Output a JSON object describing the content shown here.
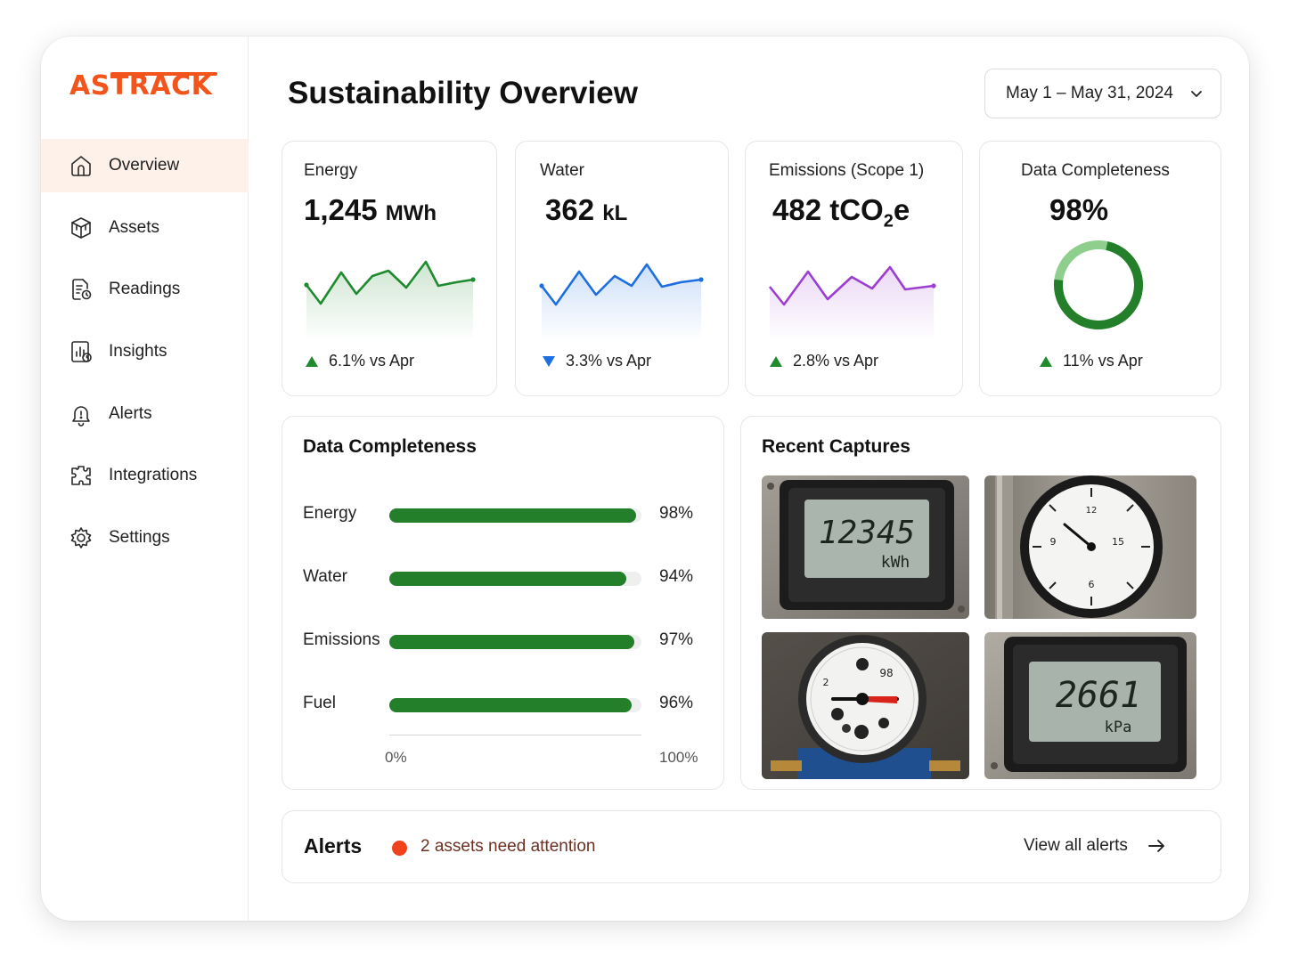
{
  "app": {
    "logo": "ASTRACK",
    "brand_color": "#f2541b"
  },
  "sidebar": {
    "items": [
      {
        "label": "Overview",
        "icon": "home-icon",
        "active": true
      },
      {
        "label": "Assets",
        "icon": "cube-icon",
        "active": false
      },
      {
        "label": "Readings",
        "icon": "document-icon",
        "active": false
      },
      {
        "label": "Insights",
        "icon": "chart-icon",
        "active": false
      },
      {
        "label": "Alerts",
        "icon": "bell-icon",
        "active": false
      },
      {
        "label": "Integrations",
        "icon": "puzzle-icon",
        "active": false
      },
      {
        "label": "Settings",
        "icon": "gear-icon",
        "active": false
      }
    ]
  },
  "header": {
    "title": "Sustainability Overview",
    "date_range": "May 1 – May 31, 2024"
  },
  "kpis": {
    "energy": {
      "label": "Energy",
      "value": "1,245",
      "unit": "MWh",
      "delta": "6.1% vs Apr",
      "direction": "up",
      "color": "#1f8a2e"
    },
    "water": {
      "label": "Water",
      "value": "362",
      "unit": "kL",
      "delta": "3.3% vs Apr",
      "direction": "down",
      "color": "#1d6fe0"
    },
    "emissions": {
      "label": "Emissions (Scope 1)",
      "value": "482",
      "unit_pre": "tCO",
      "unit_sub": "2",
      "unit_post": "e",
      "delta": "2.8% vs Apr",
      "direction": "up",
      "color": "#9b3ed1"
    },
    "completeness": {
      "label": "Data Completeness",
      "value": "98%",
      "delta": "11% vs Apr",
      "direction": "up",
      "fraction": 0.98
    }
  },
  "completeness": {
    "title": "Data Completeness",
    "rows": [
      {
        "label": "Energy",
        "value": "98%",
        "fraction": 0.98
      },
      {
        "label": "Water",
        "value": "94%",
        "fraction": 0.94
      },
      {
        "label": "Emissions",
        "value": "97%",
        "fraction": 0.97
      },
      {
        "label": "Fuel",
        "value": "96%",
        "fraction": 0.96
      }
    ],
    "axis_min": "0%",
    "axis_max": "100%"
  },
  "captures": {
    "title": "Recent Captures",
    "items": [
      {
        "type": "digital-meter",
        "reading": "12345",
        "unit": "kWh"
      },
      {
        "type": "analog-gauge",
        "reading": ""
      },
      {
        "type": "water-meter",
        "reading": ""
      },
      {
        "type": "digital-meter",
        "reading": "2661",
        "unit": "kPa"
      }
    ]
  },
  "alerts": {
    "title": "Alerts",
    "message": "2 assets need attention",
    "link": "View all alerts"
  }
}
